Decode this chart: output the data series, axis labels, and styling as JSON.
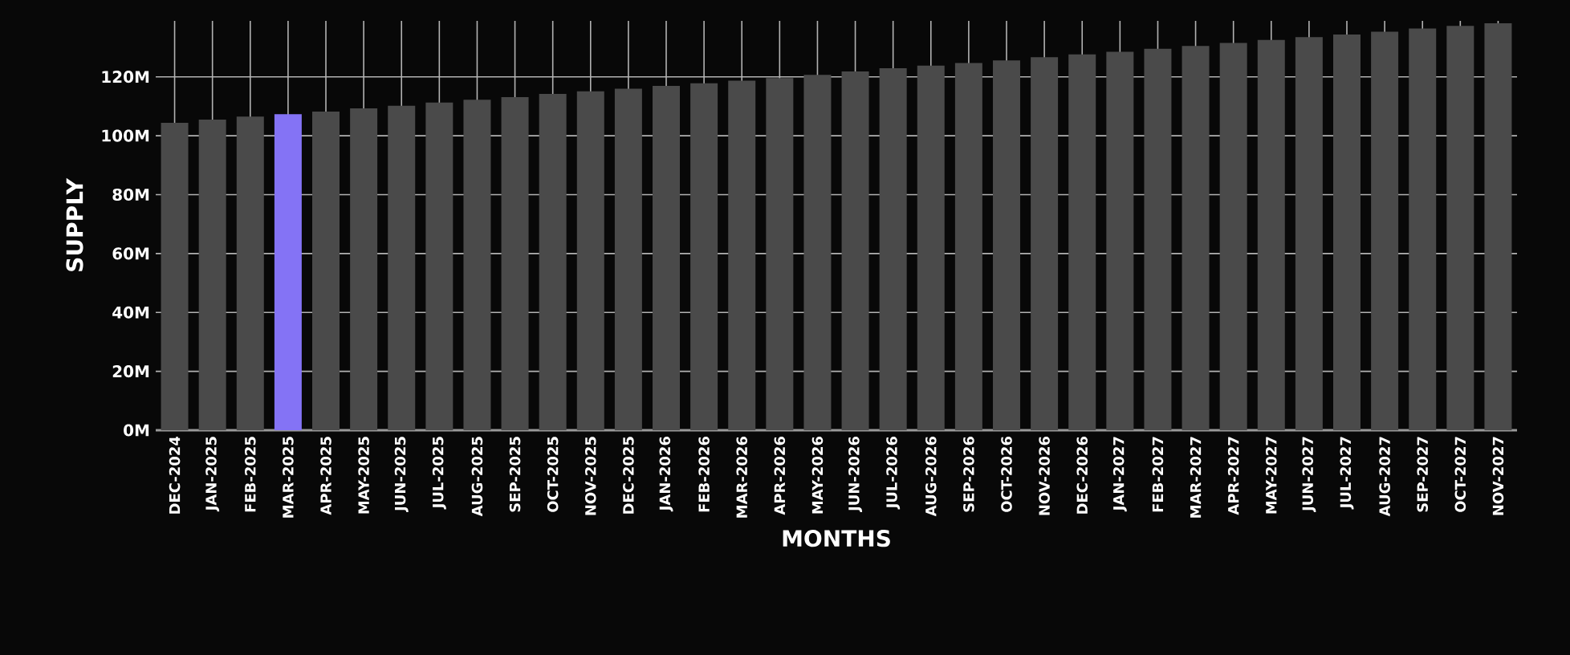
{
  "chart_data": {
    "type": "bar",
    "xlabel": "MONTHS",
    "ylabel": "SUPPLY",
    "categories": [
      "DEC-2024",
      "JAN-2025",
      "FEB-2025",
      "MAR-2025",
      "APR-2025",
      "MAY-2025",
      "JUN-2025",
      "JUL-2025",
      "AUG-2025",
      "SEP-2025",
      "OCT-2025",
      "NOV-2025",
      "DEC-2025",
      "JAN-2026",
      "FEB-2026",
      "MAR-2026",
      "APR-2026",
      "MAY-2026",
      "JUN-2026",
      "JUL-2026",
      "AUG-2026",
      "SEP-2026",
      "OCT-2026",
      "NOV-2026",
      "DEC-2026",
      "JAN-2027",
      "FEB-2027",
      "MAR-2027",
      "APR-2027",
      "MAY-2027",
      "JUN-2027",
      "JUL-2027",
      "AUG-2027",
      "SEP-2027",
      "OCT-2027",
      "NOV-2027"
    ],
    "values": [
      104.4,
      105.5,
      106.5,
      107.3,
      108.2,
      109.3,
      110.2,
      111.3,
      112.2,
      113.1,
      114.2,
      115.1,
      116.0,
      116.9,
      117.8,
      118.7,
      119.6,
      120.7,
      121.8,
      122.9,
      123.8,
      124.7,
      125.6,
      126.7,
      127.6,
      128.5,
      129.5,
      130.5,
      131.5,
      132.5,
      133.5,
      134.4,
      135.3,
      136.4,
      137.3,
      138.2
    ],
    "colors": [
      "#4a4a4a",
      "#4a4a4a",
      "#4a4a4a",
      "#8473f5",
      "#4a4a4a",
      "#4a4a4a",
      "#4a4a4a",
      "#4a4a4a",
      "#4a4a4a",
      "#4a4a4a",
      "#4a4a4a",
      "#4a4a4a",
      "#4a4a4a",
      "#4a4a4a",
      "#4a4a4a",
      "#4a4a4a",
      "#4a4a4a",
      "#4a4a4a",
      "#4a4a4a",
      "#4a4a4a",
      "#4a4a4a",
      "#4a4a4a",
      "#4a4a4a",
      "#4a4a4a",
      "#4a4a4a",
      "#4a4a4a",
      "#4a4a4a",
      "#4a4a4a",
      "#4a4a4a",
      "#4a4a4a",
      "#4a4a4a",
      "#4a4a4a",
      "#4a4a4a",
      "#4a4a4a",
      "#4a4a4a",
      "#4a4a4a"
    ],
    "ylim": [
      0,
      139
    ],
    "yticks": [
      {
        "value": 0,
        "label": "0M"
      },
      {
        "value": 20,
        "label": "20M"
      },
      {
        "value": 40,
        "label": "40M"
      },
      {
        "value": 60,
        "label": "60M"
      },
      {
        "value": 80,
        "label": "80M"
      },
      {
        "value": 100,
        "label": "100M"
      },
      {
        "value": 120,
        "label": "120M"
      }
    ],
    "grid": true
  }
}
